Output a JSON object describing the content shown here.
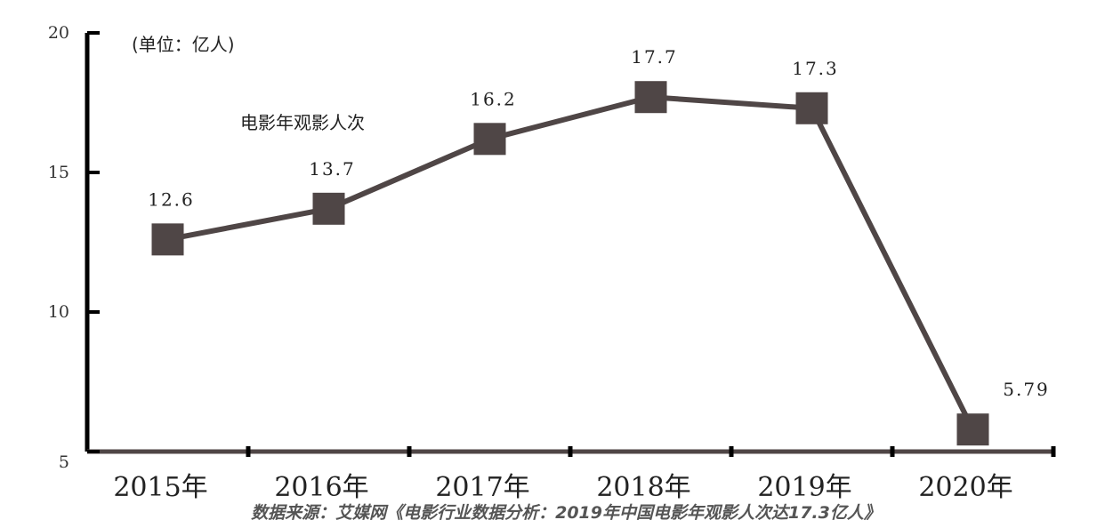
{
  "chart_data": {
    "type": "line",
    "categories": [
      "2015年",
      "2016年",
      "2017年",
      "2018年",
      "2019年",
      "2020年"
    ],
    "series": [
      {
        "name": "电影年观影人次",
        "values": [
          12.6,
          13.7,
          16.2,
          17.7,
          17.3,
          5.79
        ]
      }
    ],
    "data_labels": [
      "12.6",
      "13.7",
      "16.2",
      "17.7",
      "17.3",
      "5.79"
    ],
    "unit_note": "(单位：亿人)",
    "yticks": [
      "5",
      "10",
      "15",
      "20"
    ],
    "ylim": [
      5,
      20
    ],
    "grid": false,
    "marker": "square",
    "line_color": "#4f4646",
    "axis_color": "#000000",
    "source": "数据来源：艾媒网《电影行业数据分析：2019年中国电影年观影人次达17.3亿人》"
  }
}
